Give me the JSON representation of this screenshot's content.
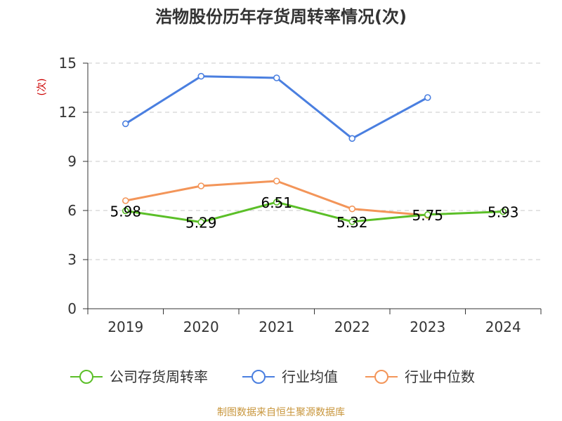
{
  "chart_data": {
    "type": "line",
    "title": "浩物股份历年存货周转率情况(次)",
    "ylabel": "(次)",
    "xlabel": "",
    "categories": [
      "2019",
      "2020",
      "2021",
      "2022",
      "2023",
      "2024"
    ],
    "ylim": [
      0,
      15
    ],
    "yticks": [
      0,
      3,
      6,
      9,
      12,
      15
    ],
    "grid": true,
    "legend_position": "bottom",
    "series": [
      {
        "name": "公司存货周转率",
        "color": "#5bbf28",
        "values": [
          5.98,
          5.29,
          6.51,
          5.32,
          5.75,
          5.93
        ],
        "labels": [
          "5.98",
          "5.29",
          "6.51",
          "5.32",
          "5.75",
          "5.93"
        ]
      },
      {
        "name": "行业均值",
        "color": "#4a7fe0",
        "values": [
          11.3,
          14.2,
          14.1,
          10.4,
          12.9,
          null
        ]
      },
      {
        "name": "行业中位数",
        "color": "#f39559",
        "values": [
          6.6,
          7.5,
          7.8,
          6.1,
          5.7,
          null
        ]
      }
    ]
  },
  "source": "制图数据来自恒生聚源数据库"
}
